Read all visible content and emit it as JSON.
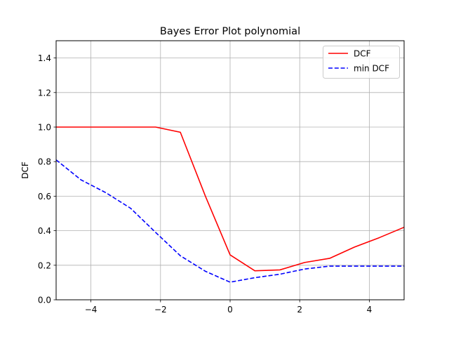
{
  "chart_data": {
    "type": "line",
    "title": "Bayes Error Plot polynomial",
    "xlabel": "",
    "ylabel": "DCF",
    "xlim": [
      -5,
      5
    ],
    "ylim": [
      0,
      1.5
    ],
    "xticks": [
      -4,
      -2,
      0,
      2,
      4
    ],
    "xtick_labels": [
      "−4",
      "−2",
      "0",
      "2",
      "4"
    ],
    "yticks": [
      0.0,
      0.2,
      0.4,
      0.6,
      0.8,
      1.0,
      1.2,
      1.4
    ],
    "ytick_labels": [
      "0.0",
      "0.2",
      "0.4",
      "0.6",
      "0.8",
      "1.0",
      "1.2",
      "1.4"
    ],
    "grid": true,
    "legend_position": "top-right",
    "x": [
      -5.0,
      -4.29,
      -3.57,
      -2.86,
      -2.14,
      -1.43,
      -0.71,
      0.0,
      0.71,
      1.43,
      2.14,
      2.86,
      3.57,
      4.29,
      5.0
    ],
    "series": [
      {
        "name": "DCF",
        "color": "#ff0000",
        "style": "solid",
        "values": [
          1.0,
          1.0,
          1.0,
          1.0,
          1.0,
          0.97,
          0.6,
          0.26,
          0.168,
          0.173,
          0.216,
          0.24,
          0.305,
          0.36,
          0.42
        ]
      },
      {
        "name": "min DCF",
        "color": "#0000ff",
        "style": "dashed",
        "values": [
          0.81,
          0.695,
          0.62,
          0.53,
          0.39,
          0.255,
          0.165,
          0.102,
          0.128,
          0.148,
          0.178,
          0.195,
          0.195,
          0.195,
          0.195
        ]
      }
    ]
  }
}
